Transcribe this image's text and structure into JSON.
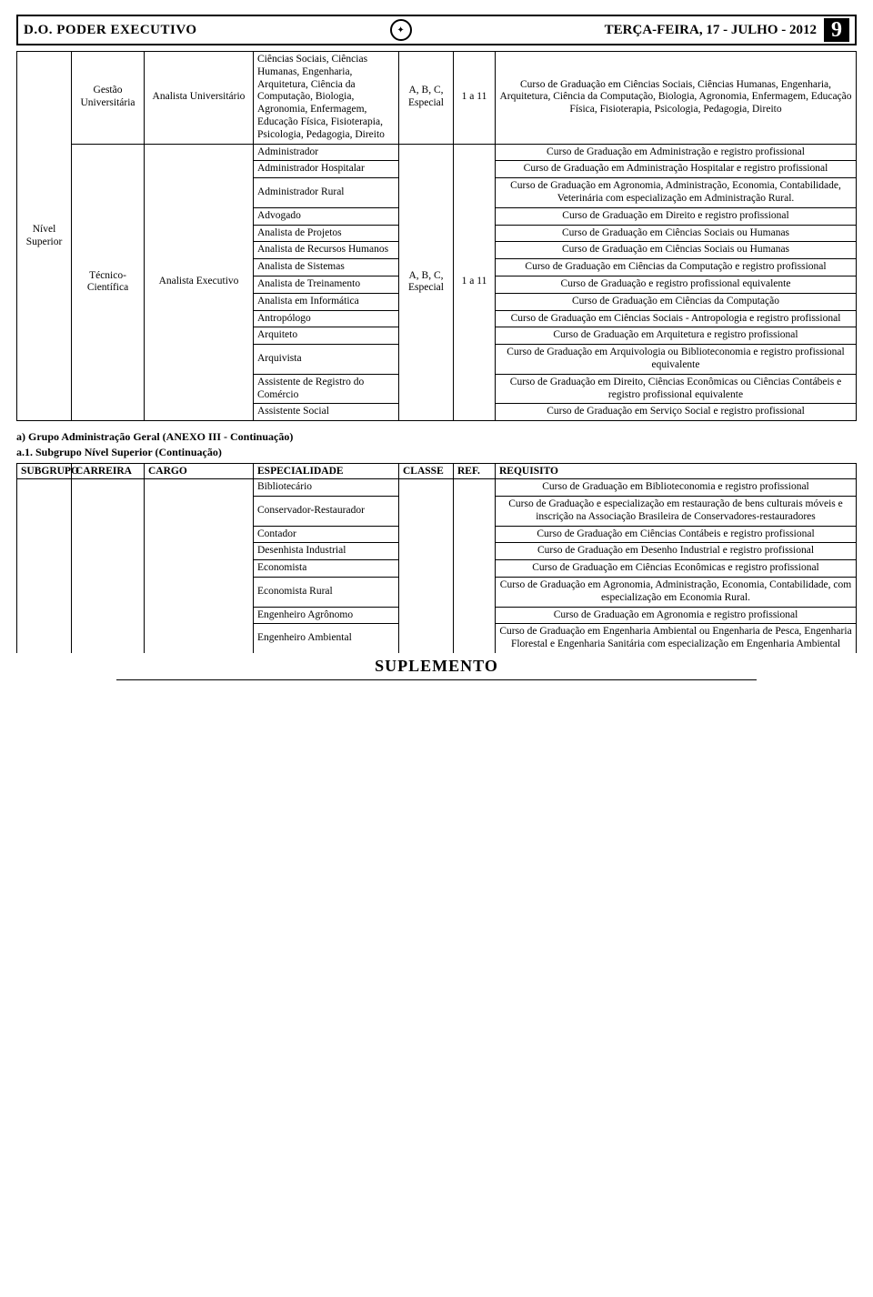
{
  "header": {
    "left": "D.O. PODER EXECUTIVO",
    "date": "TERÇA-FEIRA, 17 - JULHO - 2012",
    "page_number": "9"
  },
  "table1": {
    "subgrupo": "Nível Superior",
    "rows": [
      {
        "carreira": "Gestão Universitária",
        "cargo": "Analista Universitário",
        "espec": "Ciências Sociais, Ciências Humanas, Engenharia, Arquitetura, Ciência da Computação, Biologia, Agronomia, Enfermagem, Educação Física, Fisioterapia, Psicologia, Pedagogia, Direito",
        "classe": "A, B, C, Especial",
        "ref": "1 a 11",
        "req": "Curso de Graduação em Ciências Sociais, Ciências Humanas, Engenharia, Arquitetura, Ciência da Computação, Biologia, Agronomia, Enfermagem, Educação Física, Fisioterapia, Psicologia, Pedagogia, Direito"
      }
    ],
    "tecnico": {
      "carreira": "Técnico-Científica",
      "cargo": "Analista Executivo",
      "classe": "A, B, C, Especial",
      "ref": "1 a 11",
      "especs": [
        {
          "e": "Administrador",
          "r": "Curso de Graduação em Administração e registro profissional"
        },
        {
          "e": "Administrador Hospitalar",
          "r": "Curso de Graduação em Administração Hospitalar e registro profissional"
        },
        {
          "e": "Administrador Rural",
          "r": "Curso de Graduação em Agronomia, Administração, Economia, Contabilidade, Veterinária com especialização em Administração Rural."
        },
        {
          "e": "Advogado",
          "r": "Curso de Graduação em Direito e registro profissional"
        },
        {
          "e": "Analista de Projetos",
          "r": "Curso de Graduação em Ciências Sociais ou Humanas"
        },
        {
          "e": "Analista de Recursos Humanos",
          "r": "Curso de Graduação em Ciências Sociais ou Humanas"
        },
        {
          "e": "Analista de Sistemas",
          "r": "Curso de Graduação em Ciências da Computação e registro profissional"
        },
        {
          "e": "Analista de Treinamento",
          "r": "Curso de Graduação e registro profissional equivalente"
        },
        {
          "e": "Analista em Informática",
          "r": "Curso de Graduação em Ciências da Computação"
        },
        {
          "e": "Antropólogo",
          "r": "Curso de Graduação em Ciências Sociais - Antropologia e registro profissional"
        },
        {
          "e": "Arquiteto",
          "r": "Curso de Graduação em Arquitetura e registro profissional"
        },
        {
          "e": "Arquivista",
          "r": "Curso de Graduação em Arquivologia ou Biblioteconomia e registro profissional equivalente"
        },
        {
          "e": "Assistente de Registro do Comércio",
          "r": "Curso de Graduação em Direito, Ciências Econômicas ou Ciências Contábeis e registro profissional equivalente"
        },
        {
          "e": "Assistente Social",
          "r": "Curso de Graduação em Serviço Social e registro profissional"
        }
      ]
    }
  },
  "section": {
    "a": "a)    Grupo Administração Geral (ANEXO III - Continuação)",
    "a1": "a.1. Subgrupo Nível Superior (Continuação)"
  },
  "table2": {
    "headers": {
      "subgrupo": "SUBGRUPO",
      "carreira": "CARREIRA",
      "cargo": "CARGO",
      "espec": "ESPECIALIDADE",
      "classe": "CLASSE",
      "ref": "REF.",
      "req": "REQUISITO"
    },
    "rows": [
      {
        "e": "Bibliotecário",
        "r": "Curso de Graduação em Biblioteconomia e registro profissional"
      },
      {
        "e": "Conservador-Restaurador",
        "r": "Curso de Graduação e especialização em restauração de bens culturais móveis e inscrição na Associação Brasileira de Conservadores-restauradores"
      },
      {
        "e": "Contador",
        "r": "Curso de Graduação em Ciências Contábeis e registro profissional"
      },
      {
        "e": "Desenhista Industrial",
        "r": "Curso de Graduação em Desenho Industrial e registro profissional"
      },
      {
        "e": "Economista",
        "r": "Curso de Graduação em Ciências Econômicas e registro profissional"
      },
      {
        "e": "Economista Rural",
        "r": "Curso de Graduação em Agronomia, Administração, Economia, Contabilidade, com especialização em Economia Rural."
      },
      {
        "e": "Engenheiro Agrônomo",
        "r": "Curso de Graduação em Agronomia e registro profissional"
      },
      {
        "e": "Engenheiro Ambiental",
        "r": "Curso de Graduação em Engenharia Ambiental ou Engenharia de Pesca, Engenharia Florestal e Engenharia Sanitária com especialização em Engenharia Ambiental"
      }
    ]
  },
  "footer": "SUPLEMENTO"
}
